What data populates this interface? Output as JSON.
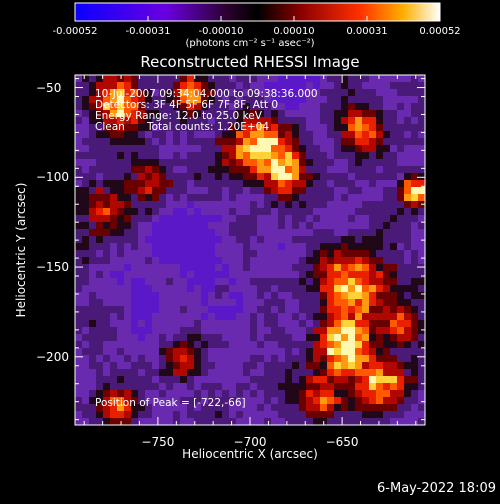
{
  "title": "Reconstructed RHESSI Image",
  "observation": {
    "time_range": "10-Jul-2007 09:34:04.000 to 09:38:36.000",
    "detectors": "Detectors: 3F 4F 5F 6F 7F 8F, Att 0",
    "energy_range": "Energy Range: 12.0 to 25.0 keV",
    "algorithm": "Clean",
    "total_counts": "Total counts: 1.20E+04",
    "peak_position": "Position of Peak = [-722,-66]"
  },
  "colorbar": {
    "tick_labels": [
      "-0.00052",
      "-0.00031",
      "-0.00010",
      "0.00010",
      "0.00031",
      "0.00052"
    ],
    "unit_label": "(photons cm⁻² s⁻¹ asec⁻²)"
  },
  "axes": {
    "xlabel": "Heliocentric X (arcsec)",
    "ylabel": "Heliocentric Y (arcsec)",
    "x_ticks": [
      "-750",
      "-700",
      "-650"
    ],
    "y_ticks": [
      "-50",
      "-100",
      "-150",
      "-200"
    ],
    "x_range": [
      -795,
      -605
    ],
    "y_range": [
      -238,
      -43
    ]
  },
  "footer_date": "6-May-2022 18:09"
}
